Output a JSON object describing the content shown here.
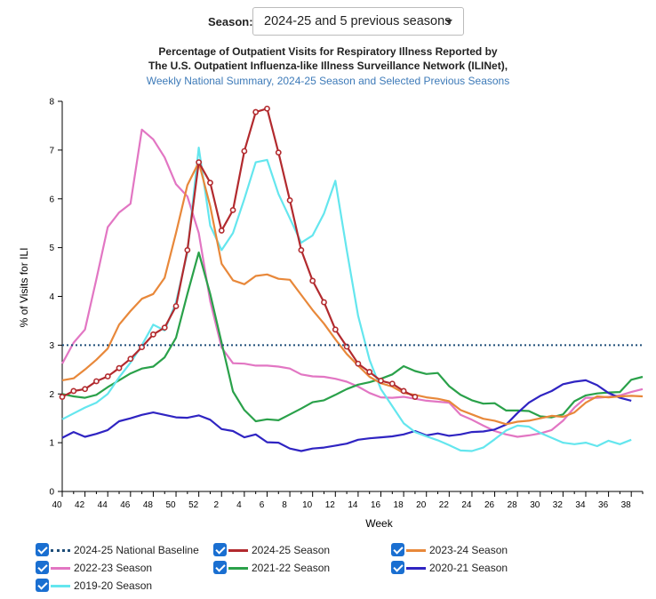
{
  "season_selector": {
    "label": "Season:",
    "value": "2024-25 and 5 previous seasons"
  },
  "title_line1": "Percentage of Outpatient Visits for Respiratory Illness Reported by",
  "title_line2": "The U.S. Outpatient Influenza-like Illness Surveillance Network (ILINet),",
  "subtitle": "Weekly National Summary, 2024-25 Season and Selected Previous Seasons",
  "legend": [
    {
      "label": "2024-25 National Baseline",
      "color": "#1f4e79",
      "style": "dotted"
    },
    {
      "label": "2024-25 Season",
      "color": "#b22a2e",
      "style": "solid"
    },
    {
      "label": "2023-24 Season",
      "color": "#e8883a",
      "style": "solid"
    },
    {
      "label": "2022-23 Season",
      "color": "#e276c3",
      "style": "solid"
    },
    {
      "label": "2021-22 Season",
      "color": "#2aa14a",
      "style": "solid"
    },
    {
      "label": "2020-21 Season",
      "color": "#2f24c2",
      "style": "solid"
    },
    {
      "label": "2019-20 Season",
      "color": "#64e6ee",
      "style": "solid"
    }
  ],
  "chart_data": {
    "type": "line",
    "xlabel": "Week",
    "ylabel": "% of Visits for ILI",
    "ylim": [
      0,
      8
    ],
    "yticks": [
      "0",
      "1",
      "2",
      "3",
      "4",
      "5",
      "6",
      "7",
      "8"
    ],
    "xtick_labels": [
      "40",
      "42",
      "44",
      "46",
      "48",
      "50",
      "52",
      "2",
      "4",
      "6",
      "8",
      "10",
      "12",
      "14",
      "16",
      "18",
      "20",
      "22",
      "24",
      "26",
      "28",
      "30",
      "32",
      "34",
      "36",
      "38"
    ],
    "grid": false,
    "baseline": {
      "name": "2024-25 National Baseline",
      "value": 3.0
    },
    "series": [
      {
        "name": "2022-23 Season",
        "color": "#e276c3",
        "values": [
          2.62,
          3.05,
          3.32,
          4.35,
          5.42,
          5.72,
          5.9,
          7.42,
          7.22,
          6.85,
          6.3,
          6.05,
          5.3,
          3.9,
          2.95,
          2.63,
          2.62,
          2.58,
          2.58,
          2.56,
          2.52,
          2.4,
          2.36,
          2.35,
          2.31,
          2.25,
          2.15,
          2.02,
          1.93,
          1.92,
          1.94,
          1.9,
          1.86,
          1.84,
          1.82,
          1.57,
          1.47,
          1.35,
          1.24,
          1.17,
          1.12,
          1.15,
          1.19,
          1.26,
          1.45,
          1.72,
          1.92,
          1.92,
          1.94,
          1.97,
          2.04,
          2.1
        ]
      },
      {
        "name": "2021-22 Season",
        "color": "#2aa14a",
        "values": [
          2.0,
          1.95,
          1.92,
          1.98,
          2.14,
          2.28,
          2.42,
          2.52,
          2.56,
          2.75,
          3.15,
          4.05,
          4.9,
          4.05,
          3.05,
          2.05,
          1.67,
          1.44,
          1.48,
          1.46,
          1.58,
          1.7,
          1.83,
          1.87,
          1.98,
          2.1,
          2.19,
          2.24,
          2.31,
          2.4,
          2.57,
          2.47,
          2.41,
          2.43,
          2.16,
          1.98,
          1.87,
          1.8,
          1.81,
          1.66,
          1.66,
          1.65,
          1.54,
          1.52,
          1.58,
          1.85,
          1.97,
          2.01,
          2.03,
          2.04,
          2.29,
          2.35
        ]
      },
      {
        "name": "2020-21 Season",
        "color": "#2f24c2",
        "values": [
          1.1,
          1.22,
          1.12,
          1.18,
          1.26,
          1.44,
          1.5,
          1.57,
          1.62,
          1.57,
          1.52,
          1.51,
          1.56,
          1.47,
          1.28,
          1.24,
          1.11,
          1.17,
          1.01,
          1.0,
          0.88,
          0.83,
          0.88,
          0.9,
          0.94,
          0.98,
          1.06,
          1.09,
          1.11,
          1.13,
          1.17,
          1.24,
          1.15,
          1.19,
          1.14,
          1.17,
          1.22,
          1.23,
          1.27,
          1.37,
          1.61,
          1.82,
          1.96,
          2.06,
          2.2,
          2.25,
          2.28,
          2.18,
          2.02,
          1.92,
          1.86
        ]
      },
      {
        "name": "2019-20 Season",
        "color": "#64e6ee",
        "values": [
          1.48,
          1.6,
          1.72,
          1.82,
          2.0,
          2.34,
          2.64,
          3.0,
          3.42,
          3.3,
          3.88,
          4.9,
          7.05,
          5.45,
          4.95,
          5.3,
          6.0,
          6.75,
          6.8,
          6.1,
          5.6,
          5.1,
          5.25,
          5.7,
          6.37,
          4.95,
          3.6,
          2.7,
          2.1,
          1.75,
          1.4,
          1.22,
          1.13,
          1.05,
          0.95,
          0.84,
          0.83,
          0.9,
          1.07,
          1.25,
          1.35,
          1.33,
          1.2,
          1.1,
          1.0,
          0.97,
          1.0,
          0.93,
          1.04,
          0.97,
          1.06
        ]
      },
      {
        "name": "2023-24 Season",
        "color": "#e8883a",
        "values": [
          2.28,
          2.32,
          2.5,
          2.7,
          2.93,
          3.42,
          3.7,
          3.95,
          4.05,
          4.38,
          5.3,
          6.28,
          6.75,
          5.85,
          4.67,
          4.33,
          4.25,
          4.42,
          4.45,
          4.36,
          4.34,
          4.03,
          3.72,
          3.44,
          3.12,
          2.82,
          2.58,
          2.35,
          2.22,
          2.15,
          2.02,
          1.98,
          1.93,
          1.9,
          1.85,
          1.67,
          1.58,
          1.49,
          1.45,
          1.38,
          1.43,
          1.45,
          1.5,
          1.55,
          1.53,
          1.62,
          1.82,
          1.95,
          1.93,
          1.95,
          1.96,
          1.95
        ]
      },
      {
        "name": "2024-25 Season",
        "color": "#b22a2e",
        "markers": true,
        "values": [
          1.94,
          2.06,
          2.1,
          2.26,
          2.36,
          2.53,
          2.72,
          2.96,
          3.22,
          3.36,
          3.8,
          4.95,
          6.75,
          6.33,
          5.35,
          5.77,
          6.98,
          7.78,
          7.85,
          6.95,
          5.97,
          4.95,
          4.32,
          3.88,
          3.32,
          2.97,
          2.62,
          2.45,
          2.27,
          2.21,
          2.06,
          1.94
        ]
      }
    ]
  }
}
